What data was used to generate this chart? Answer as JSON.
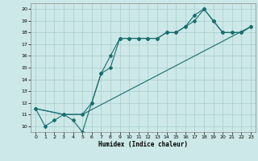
{
  "xlabel": "Humidex (Indice chaleur)",
  "bg_color": "#cce8e8",
  "line_color": "#1a6e6e",
  "grid_color": "#aacccc",
  "ylim": [
    9.5,
    20.5
  ],
  "xlim": [
    -0.5,
    23.5
  ],
  "yticks": [
    10,
    11,
    12,
    13,
    14,
    15,
    16,
    17,
    18,
    19,
    20
  ],
  "xticks": [
    0,
    1,
    2,
    3,
    4,
    5,
    6,
    7,
    8,
    9,
    10,
    11,
    12,
    13,
    14,
    15,
    16,
    17,
    18,
    19,
    20,
    21,
    22,
    23
  ],
  "line1_x": [
    0,
    1,
    2,
    3,
    4,
    5,
    6,
    7,
    8,
    9,
    10,
    11,
    12,
    13,
    14,
    15,
    16,
    17,
    18,
    19,
    20,
    21,
    22,
    23
  ],
  "line1_y": [
    11.5,
    10.0,
    10.5,
    11.0,
    10.5,
    9.5,
    12.0,
    14.5,
    15.0,
    17.5,
    17.5,
    17.5,
    17.5,
    17.5,
    18.0,
    18.0,
    18.5,
    19.0,
    20.0,
    19.0,
    18.0,
    18.0,
    18.0,
    18.5
  ],
  "line2_x": [
    0,
    3,
    5,
    6,
    7,
    8,
    9,
    10,
    11,
    12,
    13,
    14,
    15,
    16,
    17,
    18,
    19,
    20,
    21,
    22,
    23
  ],
  "line2_y": [
    11.5,
    11.0,
    11.0,
    12.0,
    14.5,
    16.0,
    17.5,
    17.5,
    17.5,
    17.5,
    17.5,
    18.0,
    18.0,
    18.5,
    19.5,
    20.0,
    19.0,
    18.0,
    18.0,
    18.0,
    18.5
  ],
  "line3_x": [
    0,
    3,
    5,
    23
  ],
  "line3_y": [
    11.5,
    11.0,
    11.0,
    18.5
  ]
}
